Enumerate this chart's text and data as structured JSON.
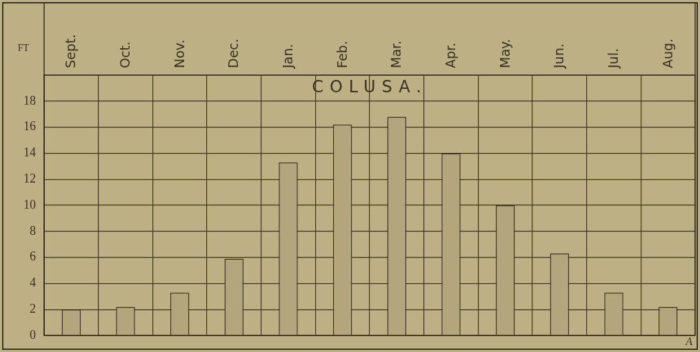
{
  "chart_data": {
    "type": "bar",
    "title": "COLUSA.",
    "ylabel": "FT",
    "categories": [
      "Sept.",
      "Oct.",
      "Nov.",
      "Dec.",
      "Jan.",
      "Feb.",
      "Mar.",
      "Apr.",
      "May.",
      "Jun.",
      "Jul.",
      "Aug."
    ],
    "values": [
      2.0,
      2.2,
      3.3,
      5.9,
      13.3,
      16.2,
      16.8,
      14.0,
      10.0,
      6.3,
      3.3,
      2.2
    ],
    "color": "#b3a67c",
    "ylim": [
      0,
      20
    ],
    "yticks": [
      0,
      2,
      4,
      6,
      8,
      10,
      12,
      14,
      16,
      18
    ],
    "grid": true,
    "legend": false,
    "annotations": [
      "A"
    ]
  }
}
